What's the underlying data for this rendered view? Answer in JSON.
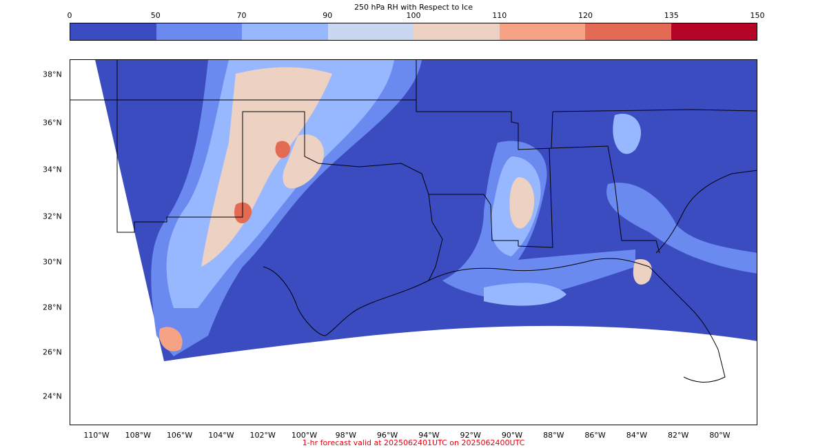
{
  "title": "250 hPa RH with Respect to Ice",
  "colorbar": {
    "ticks": [
      "0",
      "50",
      "70",
      "90",
      "100",
      "110",
      "120",
      "135",
      "150"
    ],
    "colors": [
      "#3b4cc0",
      "#6a8aef",
      "#97b8ff",
      "#c9d7f0",
      "#edd1c2",
      "#f6a385",
      "#e36a53",
      "#b40426"
    ]
  },
  "map": {
    "ocean_and_land_fill": "#3b4cc0",
    "outside_domain_fill": "#ffffff",
    "region": "Southern Plains and Gulf Coast, USA",
    "moist_region_color_low": "#6a8aef",
    "moist_region_color_high": "#edd1c2"
  },
  "lat_labels": [
    "38°N",
    "36°N",
    "34°N",
    "32°N",
    "30°N",
    "28°N",
    "26°N",
    "24°N"
  ],
  "lon_labels": [
    "110°W",
    "108°W",
    "106°W",
    "104°W",
    "102°W",
    "100°W",
    "98°W",
    "96°W",
    "94°W",
    "92°W",
    "90°W",
    "88°W",
    "86°W",
    "84°W",
    "82°W",
    "80°W"
  ],
  "footer": "1-hr forecast valid at 2025062401UTC on 2025062400UTC"
}
